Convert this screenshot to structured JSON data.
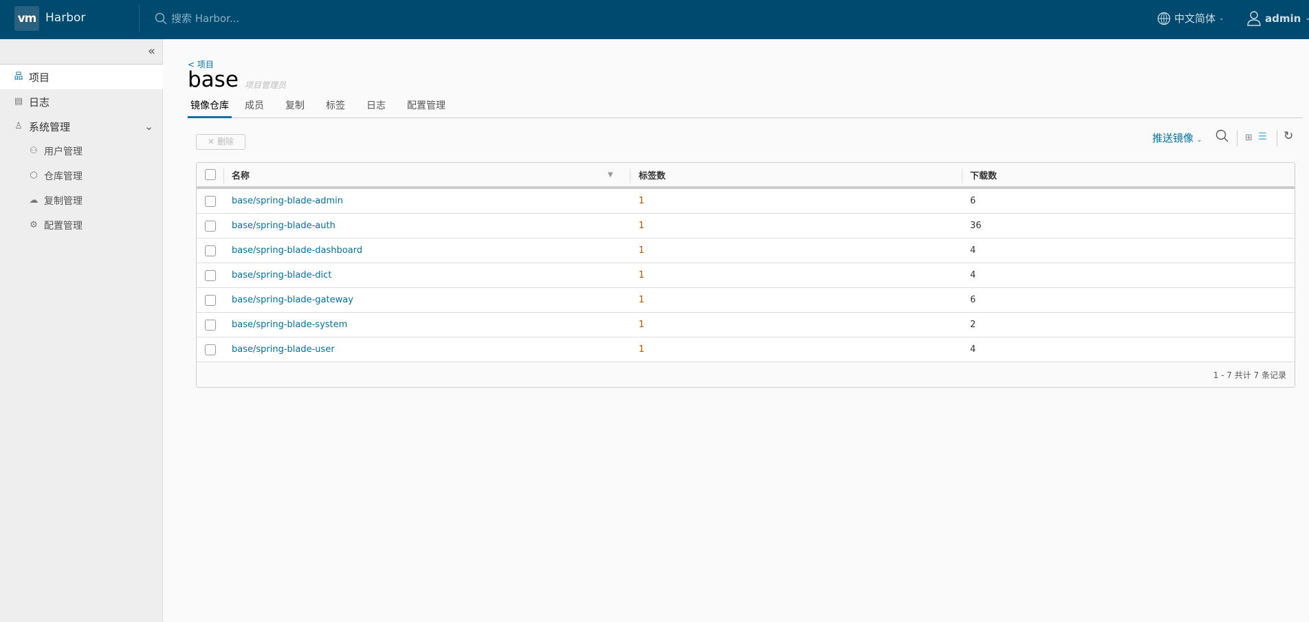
{
  "header": {
    "logo": "vm",
    "brand": "Harbor",
    "search_placeholder": "搜索 Harbor...",
    "language": "中文简体",
    "user": "admin"
  },
  "sidebar": {
    "items": [
      {
        "label": "项目",
        "icon": "projects-icon"
      },
      {
        "label": "日志",
        "icon": "logs-icon"
      },
      {
        "label": "系统管理",
        "icon": "admin-icon"
      }
    ],
    "sub_items": [
      {
        "label": "用户管理",
        "icon": "users-icon"
      },
      {
        "label": "仓库管理",
        "icon": "registry-icon"
      },
      {
        "label": "复制管理",
        "icon": "replication-icon"
      },
      {
        "label": "配置管理",
        "icon": "gear-icon"
      }
    ]
  },
  "main": {
    "breadcrumb": "< 项目",
    "title": "base",
    "role": "项目管理员",
    "tabs": [
      "镜像仓库",
      "成员",
      "复制",
      "标签",
      "日志",
      "配置管理"
    ],
    "delete_label": "删除",
    "push_label": "推送镜像",
    "table": {
      "headers": [
        "名称",
        "标签数",
        "下载数"
      ],
      "rows": [
        [
          "base/spring-blade-admin",
          "1",
          "6"
        ],
        [
          "base/spring-blade-auth",
          "1",
          "36"
        ],
        [
          "base/spring-blade-dashboard",
          "1",
          "4"
        ],
        [
          "base/spring-blade-dict",
          "1",
          "4"
        ],
        [
          "base/spring-blade-gateway",
          "1",
          "6"
        ],
        [
          "base/spring-blade-system",
          "1",
          "2"
        ],
        [
          "base/spring-blade-user",
          "1",
          "4"
        ]
      ],
      "footer": "1 - 7 共计 7 条记录"
    }
  },
  "colors": {
    "header": "#004a70",
    "accent": "#0072a3",
    "tag_count": "#c25400"
  }
}
